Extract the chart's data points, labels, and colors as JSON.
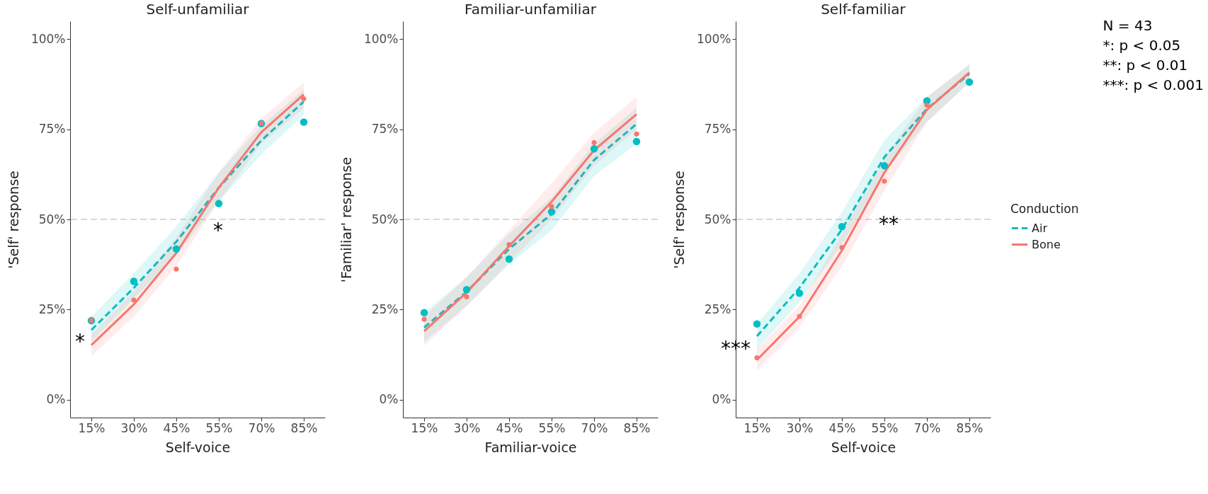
{
  "chart_data": [
    {
      "type": "line",
      "title": "Self-unfamiliar",
      "xlabel": "Self-voice",
      "ylabel": "'Self' response",
      "categories": [
        "15%",
        "30%",
        "45%",
        "55%",
        "70%",
        "85%"
      ],
      "ylim": [
        -5,
        105
      ],
      "yticks": [
        {
          "value": 0,
          "label": "0%"
        },
        {
          "value": 25,
          "label": "25%"
        },
        {
          "value": 50,
          "label": "50%"
        },
        {
          "value": 75,
          "label": "75%"
        },
        {
          "value": 100,
          "label": "100%"
        }
      ],
      "legend": false,
      "series": [
        {
          "type": "line",
          "color": "#00bfc4",
          "line_style": "dashed",
          "values": [
            19.3,
            31,
            43.8,
            58.8,
            71.9,
            82.7
          ],
          "lower": [
            16,
            28,
            40,
            55,
            68,
            79
          ],
          "upper": [
            23,
            35,
            48,
            63,
            76,
            86
          ]
        },
        {
          "type": "line",
          "color": "#f8766d",
          "line_style": "solid",
          "values": [
            15.1,
            26.4,
            40.7,
            58.8,
            74.2,
            84.7
          ],
          "lower": [
            12,
            23,
            37,
            55,
            71,
            81
          ],
          "upper": [
            18,
            30,
            45,
            63,
            78,
            88
          ]
        },
        {
          "type": "scatter",
          "color": "#00bfc4",
          "values": [
            21.9,
            32.8,
            41.8,
            54.4,
            76.6,
            77.0
          ]
        },
        {
          "type": "scatter",
          "color": "#f8766d",
          "values": [
            22.0,
            27.6,
            36.2,
            null,
            76.7,
            83.5
          ]
        }
      ],
      "ref_lines": [
        {
          "axis": "y",
          "value": 50,
          "color": "#b3b3b3",
          "line_style": "dashed"
        }
      ],
      "annotations": [
        {
          "text": "*",
          "x": "15%",
          "y": 17
        },
        {
          "text": "*",
          "x": "55%",
          "y": 58.8
        }
      ]
    },
    {
      "type": "line",
      "title": "Familiar-unfamiliar",
      "xlabel": "Familiar-voice",
      "ylabel": "'Familiar' response",
      "categories": [
        "15%",
        "30%",
        "45%",
        "55%",
        "70%",
        "85%"
      ],
      "ylim": [
        -5,
        105
      ],
      "yticks": [
        {
          "value": 0,
          "label": "0%"
        },
        {
          "value": 25,
          "label": "25%"
        },
        {
          "value": 50,
          "label": "50%"
        },
        {
          "value": 75,
          "label": "75%"
        },
        {
          "value": 100,
          "label": "100%"
        }
      ],
      "legend": false,
      "series": [
        {
          "type": "line",
          "color": "#00bfc4",
          "line_style": "dashed",
          "values": [
            20.0,
            29.9,
            41.8,
            51.5,
            66.5,
            76.5
          ],
          "lower": [
            16,
            26,
            37.5,
            47,
            62,
            71
          ],
          "upper": [
            24,
            34,
            46,
            56,
            71,
            81
          ]
        },
        {
          "type": "line",
          "color": "#f8766d",
          "line_style": "solid",
          "values": [
            19.0,
            29.7,
            42.6,
            54.9,
            69.2,
            79.2
          ],
          "lower": [
            15,
            26,
            38,
            50,
            65,
            75
          ],
          "upper": [
            23,
            34,
            47,
            60,
            74,
            84
          ]
        },
        {
          "type": "scatter",
          "color": "#00bfc4",
          "values": [
            24.1,
            30.5,
            39.0,
            52.1,
            69.6,
            71.6
          ]
        },
        {
          "type": "scatter",
          "color": "#f8766d",
          "values": [
            22.3,
            28.5,
            43.0,
            53.6,
            71.3,
            73.7
          ]
        }
      ],
      "ref_lines": [
        {
          "axis": "y",
          "value": 50,
          "color": "#b3b3b3",
          "line_style": "dashed"
        }
      ]
    },
    {
      "type": "line",
      "title": "Self-familiar",
      "xlabel": "Self-voice",
      "ylabel": "'Self' response",
      "categories": [
        "15%",
        "30%",
        "45%",
        "55%",
        "70%",
        "85%"
      ],
      "ylim": [
        -5,
        105
      ],
      "yticks": [
        {
          "value": 0,
          "label": "0%"
        },
        {
          "value": 25,
          "label": "25%"
        },
        {
          "value": 50,
          "label": "50%"
        },
        {
          "value": 75,
          "label": "75%"
        },
        {
          "value": 100,
          "label": "100%"
        }
      ],
      "legend": "right",
      "legend_title": "Conduction",
      "series": [
        {
          "name": "Air",
          "type": "line",
          "color": "#00bfc4",
          "line_style": "dashed",
          "values": [
            17.6,
            31.0,
            47.2,
            67.3,
            80.7,
            90.4
          ],
          "lower": [
            14,
            27,
            43,
            63,
            77,
            88
          ],
          "upper": [
            21,
            35,
            52,
            72,
            84,
            93
          ]
        },
        {
          "name": "Bone",
          "type": "line",
          "color": "#f8766d",
          "line_style": "solid",
          "values": [
            11.0,
            23.0,
            41.4,
            63.0,
            80.4,
            90.8
          ],
          "lower": [
            8,
            20,
            37,
            58,
            77,
            88
          ],
          "upper": [
            14,
            26,
            46,
            67,
            84,
            93
          ]
        },
        {
          "type": "scatter",
          "color": "#00bfc4",
          "values": [
            21.0,
            29.5,
            48.0,
            64.9,
            82.9,
            88.1
          ]
        },
        {
          "type": "scatter",
          "color": "#f8766d",
          "values": [
            11.6,
            23.1,
            42.2,
            60.6,
            81.7,
            null
          ]
        }
      ],
      "ref_lines": [
        {
          "axis": "y",
          "value": 50,
          "color": "#b3b3b3",
          "line_style": "dashed"
        }
      ],
      "annotations": [
        {
          "text": "***",
          "x": "15%",
          "y": 15
        },
        {
          "text": "**",
          "x": "55%",
          "y": 60.6
        },
        "N = 43",
        "*: p < 0.05",
        "**: p < 0.01",
        "***: p < 0.001"
      ]
    }
  ]
}
